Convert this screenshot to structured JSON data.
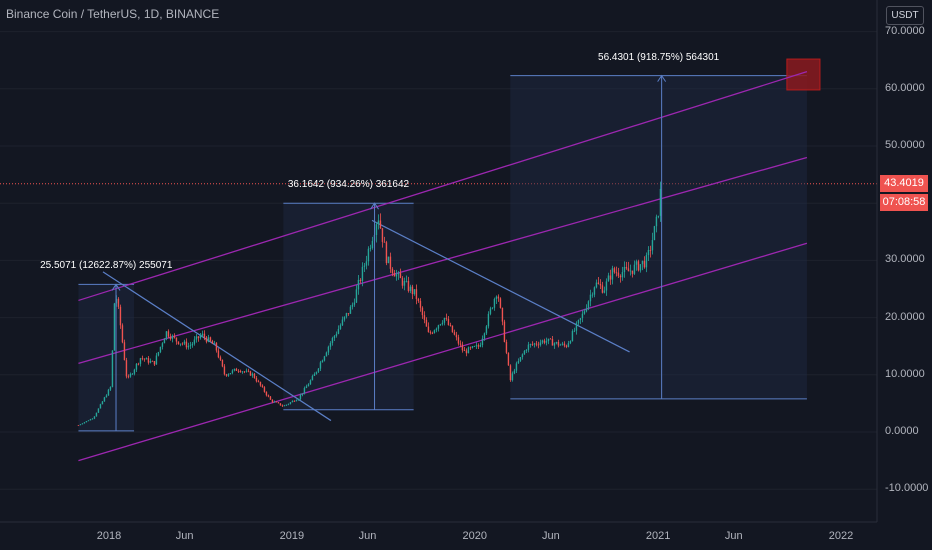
{
  "header": {
    "title": "Binance Coin / TetherUS, 1D, BINANCE"
  },
  "price_scale": {
    "unit": "USDT",
    "current_price": "43.4019",
    "countdown": "07:08:58"
  },
  "colors": {
    "up": "#26a69a",
    "down": "#ef5350",
    "channel": "#9c27b0",
    "trend": "#5b7fc7",
    "box": "#1e2a44"
  },
  "chart_data": {
    "type": "candlestick",
    "title": "Binance Coin / TetherUS, 1D, BINANCE",
    "y_ticks": [
      "70.0000",
      "60.0000",
      "50.0000",
      "40.0000",
      "30.0000",
      "20.0000",
      "10.0000",
      "0.0000",
      "-10.0000"
    ],
    "x_ticks": [
      "2018",
      "Jun",
      "2019",
      "Jun",
      "2020",
      "Jun",
      "2021",
      "Jun",
      "2022"
    ],
    "ylim": [
      -13,
      72
    ],
    "price_path": [
      [
        "2017-11-01",
        1.2
      ],
      [
        "2017-12-01",
        2.5
      ],
      [
        "2017-12-20",
        5.5
      ],
      [
        "2018-01-05",
        8
      ],
      [
        "2018-01-13",
        25
      ],
      [
        "2018-01-22",
        20
      ],
      [
        "2018-02-06",
        9
      ],
      [
        "2018-02-20",
        11
      ],
      [
        "2018-03-05",
        13
      ],
      [
        "2018-04-01",
        12
      ],
      [
        "2018-04-25",
        17.5
      ],
      [
        "2018-05-15",
        16
      ],
      [
        "2018-06-10",
        15
      ],
      [
        "2018-07-05",
        17
      ],
      [
        "2018-08-01",
        15
      ],
      [
        "2018-08-20",
        10
      ],
      [
        "2018-09-15",
        11
      ],
      [
        "2018-10-15",
        10
      ],
      [
        "2018-11-20",
        5.5
      ],
      [
        "2018-12-15",
        4.5
      ],
      [
        "2019-01-15",
        6
      ],
      [
        "2019-02-15",
        10
      ],
      [
        "2019-03-15",
        15
      ],
      [
        "2019-04-10",
        19
      ],
      [
        "2019-05-01",
        22
      ],
      [
        "2019-05-25",
        29
      ],
      [
        "2019-06-22",
        38
      ],
      [
        "2019-07-10",
        30
      ],
      [
        "2019-08-01",
        27
      ],
      [
        "2019-09-05",
        24
      ],
      [
        "2019-10-01",
        17
      ],
      [
        "2019-11-01",
        20
      ],
      [
        "2019-12-10",
        14
      ],
      [
        "2020-01-10",
        15
      ],
      [
        "2020-02-15",
        25
      ],
      [
        "2020-03-12",
        9
      ],
      [
        "2020-03-20",
        11
      ],
      [
        "2020-04-15",
        15
      ],
      [
        "2020-05-20",
        16
      ],
      [
        "2020-07-01",
        15
      ],
      [
        "2020-08-01",
        20
      ],
      [
        "2020-08-28",
        26
      ],
      [
        "2020-09-15",
        25
      ],
      [
        "2020-10-01",
        28
      ],
      [
        "2020-11-01",
        28
      ],
      [
        "2020-12-10",
        30
      ],
      [
        "2020-12-30",
        37
      ],
      [
        "2021-01-08",
        43.4
      ]
    ],
    "channel": [
      {
        "start": [
          "2017-11-01",
          23
        ],
        "end": [
          "2021-10-25",
          63
        ]
      },
      {
        "start": [
          "2017-11-01",
          12
        ],
        "end": [
          "2021-10-25",
          48
        ]
      },
      {
        "start": [
          "2017-11-01",
          -5
        ],
        "end": [
          "2021-10-25",
          33
        ]
      }
    ],
    "trendlines": [
      {
        "start": [
          "2017-12-20",
          28
        ],
        "end": [
          "2019-03-20",
          2
        ]
      },
      {
        "start": [
          "2019-06-10",
          37
        ],
        "end": [
          "2020-11-05",
          14
        ]
      }
    ],
    "measurements": [
      {
        "label": "25.5071 (12622.87%) 255071",
        "from_date": "2017-11-01",
        "to_date": "2018-02-20",
        "low": 0.2,
        "high": 25.8,
        "arrow_date": "2018-01-15"
      },
      {
        "label": "36.1642 (934.26%) 361642",
        "from_date": "2018-12-15",
        "to_date": "2019-09-01",
        "low": 3.9,
        "high": 40,
        "arrow_date": "2019-06-15"
      },
      {
        "label": "56.4301 (918.75%) 564301",
        "from_date": "2020-03-12",
        "to_date": "2021-10-25",
        "low": 5.8,
        "high": 62.3,
        "arrow_date": "2021-01-08"
      }
    ],
    "target_zone": {
      "from_date": "2021-09-15",
      "to_date": "2021-11-20",
      "low": 59.8,
      "high": 65.2
    }
  }
}
